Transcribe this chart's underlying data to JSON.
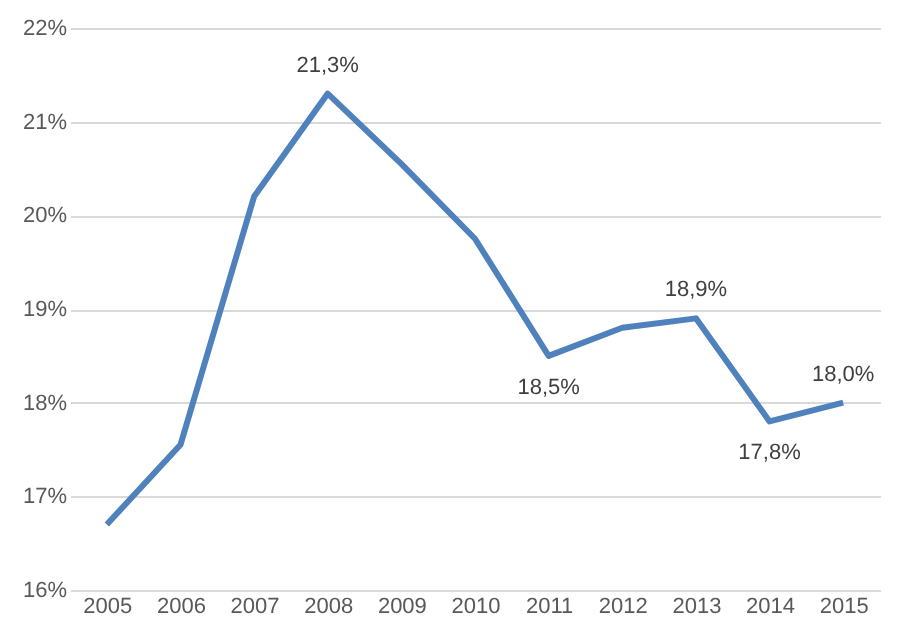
{
  "chart_data": {
    "type": "line",
    "categories": [
      "2005",
      "2006",
      "2007",
      "2008",
      "2009",
      "2010",
      "2011",
      "2012",
      "2013",
      "2014",
      "2015"
    ],
    "series": [
      {
        "color": "#4f81bd",
        "values": [
          16.7,
          17.55,
          20.2,
          21.3,
          20.55,
          19.75,
          18.5,
          18.8,
          18.9,
          17.8,
          18.0
        ],
        "value_labels": [
          null,
          null,
          null,
          "21,3%",
          null,
          null,
          "18,5%",
          null,
          "18,9%",
          "17,8%",
          "18,0%"
        ]
      }
    ],
    "ylim": [
      16,
      22
    ],
    "yticks": [
      {
        "value": 16,
        "label": "16%"
      },
      {
        "value": 17,
        "label": "17%"
      },
      {
        "value": 18,
        "label": "18%"
      },
      {
        "value": 19,
        "label": "19%"
      },
      {
        "value": 20,
        "label": "20%"
      },
      {
        "value": 21,
        "label": "21%"
      },
      {
        "value": 22,
        "label": "22%"
      }
    ],
    "grid": "y",
    "marker": "none",
    "line_style": "solid"
  }
}
